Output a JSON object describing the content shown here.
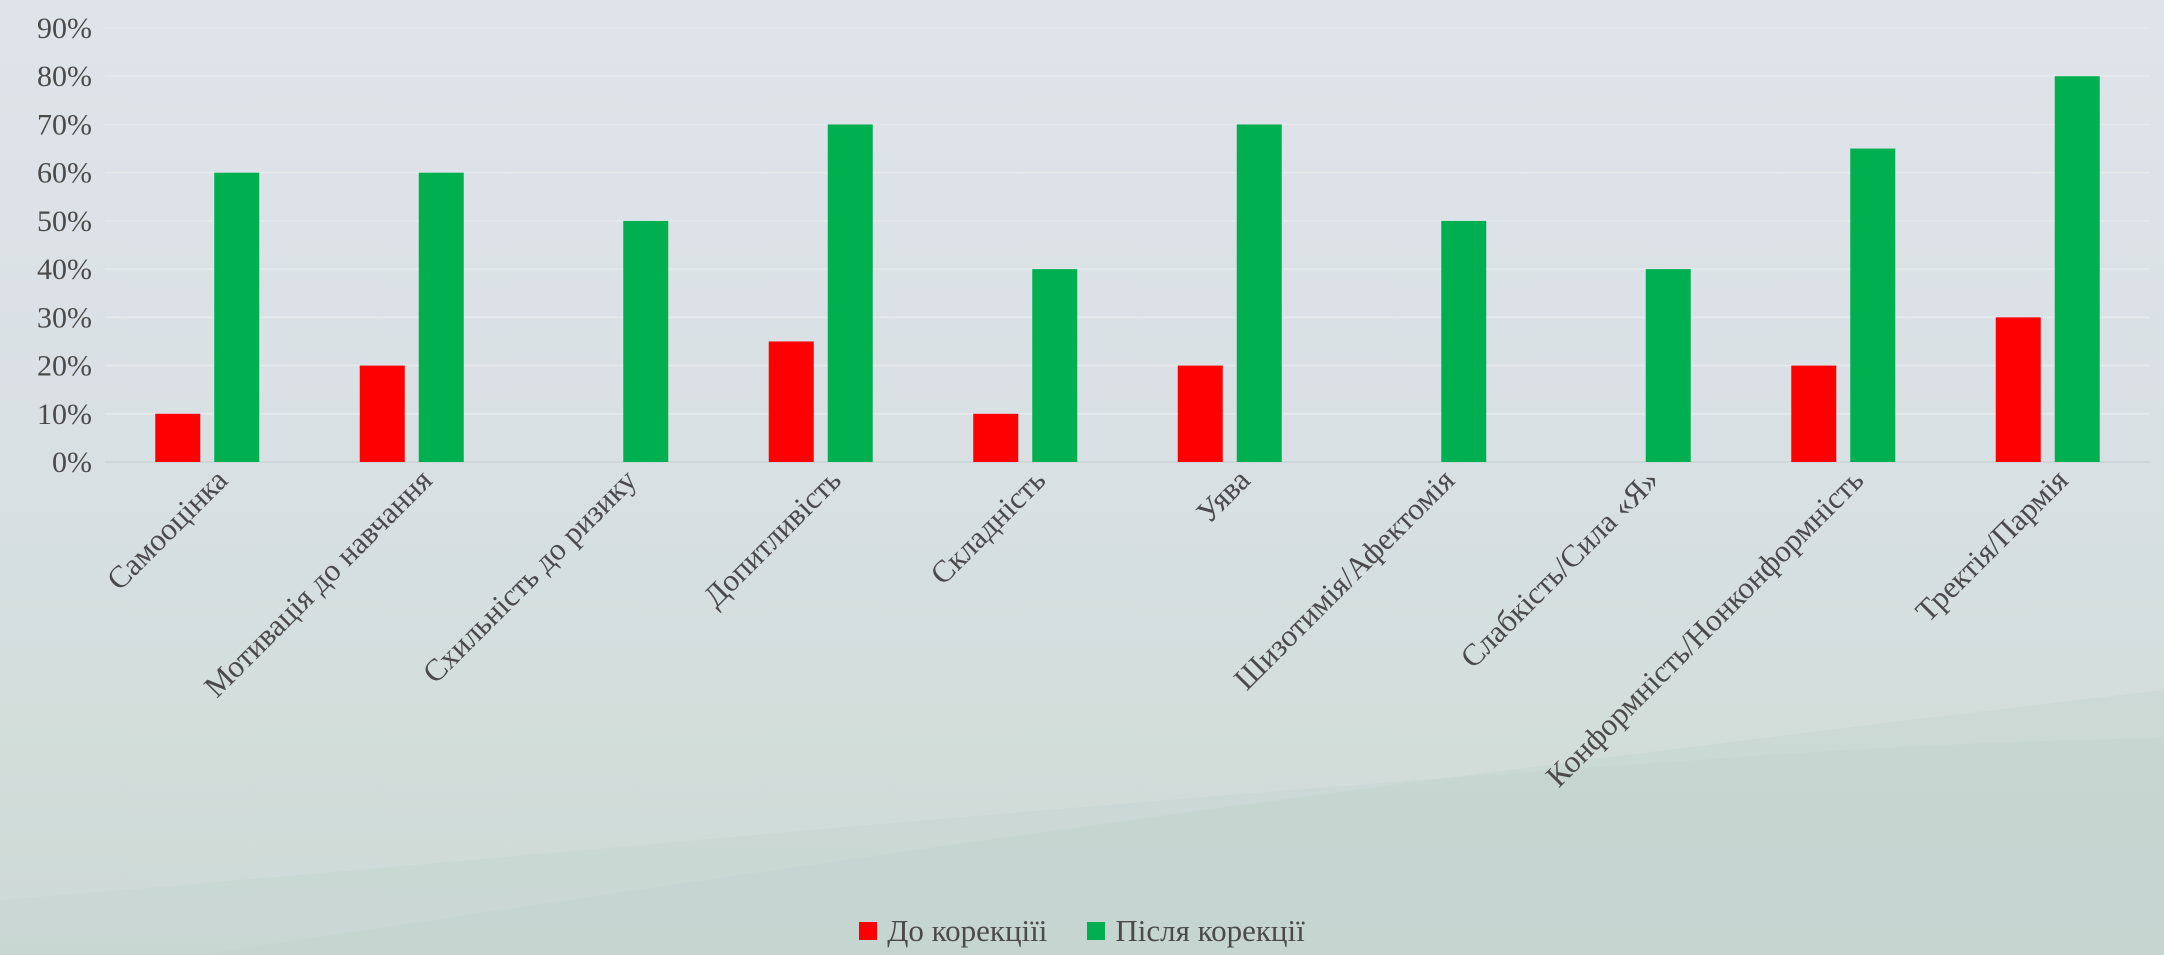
{
  "chart_data": {
    "type": "bar",
    "title": "",
    "xlabel": "",
    "ylabel": "",
    "ylim": [
      0,
      90
    ],
    "yticks": [
      0,
      10,
      20,
      30,
      40,
      50,
      60,
      70,
      80,
      90
    ],
    "ytick_labels": [
      "0%",
      "10%",
      "20%",
      "30%",
      "40%",
      "50%",
      "60%",
      "70%",
      "80%",
      "90%"
    ],
    "grid": true,
    "legend_position": "bottom",
    "categories": [
      "Самооцінка",
      "Мотивація до навчання",
      "Схильність до ризику",
      "Допитливість",
      "Складність",
      "Уява",
      "Шизотимія/Афектомія",
      "Слабкість/Сила «Я»",
      "Конформність/Нонконформність",
      "Тректія/Пармія"
    ],
    "series": [
      {
        "name": "До корекціїі",
        "color": "#ff0000",
        "values": [
          10,
          20,
          0,
          25,
          10,
          20,
          0,
          0,
          20,
          30
        ]
      },
      {
        "name": "Після корекції",
        "color": "#00b050",
        "values": [
          60,
          60,
          50,
          70,
          40,
          70,
          50,
          40,
          65,
          80
        ]
      }
    ]
  }
}
